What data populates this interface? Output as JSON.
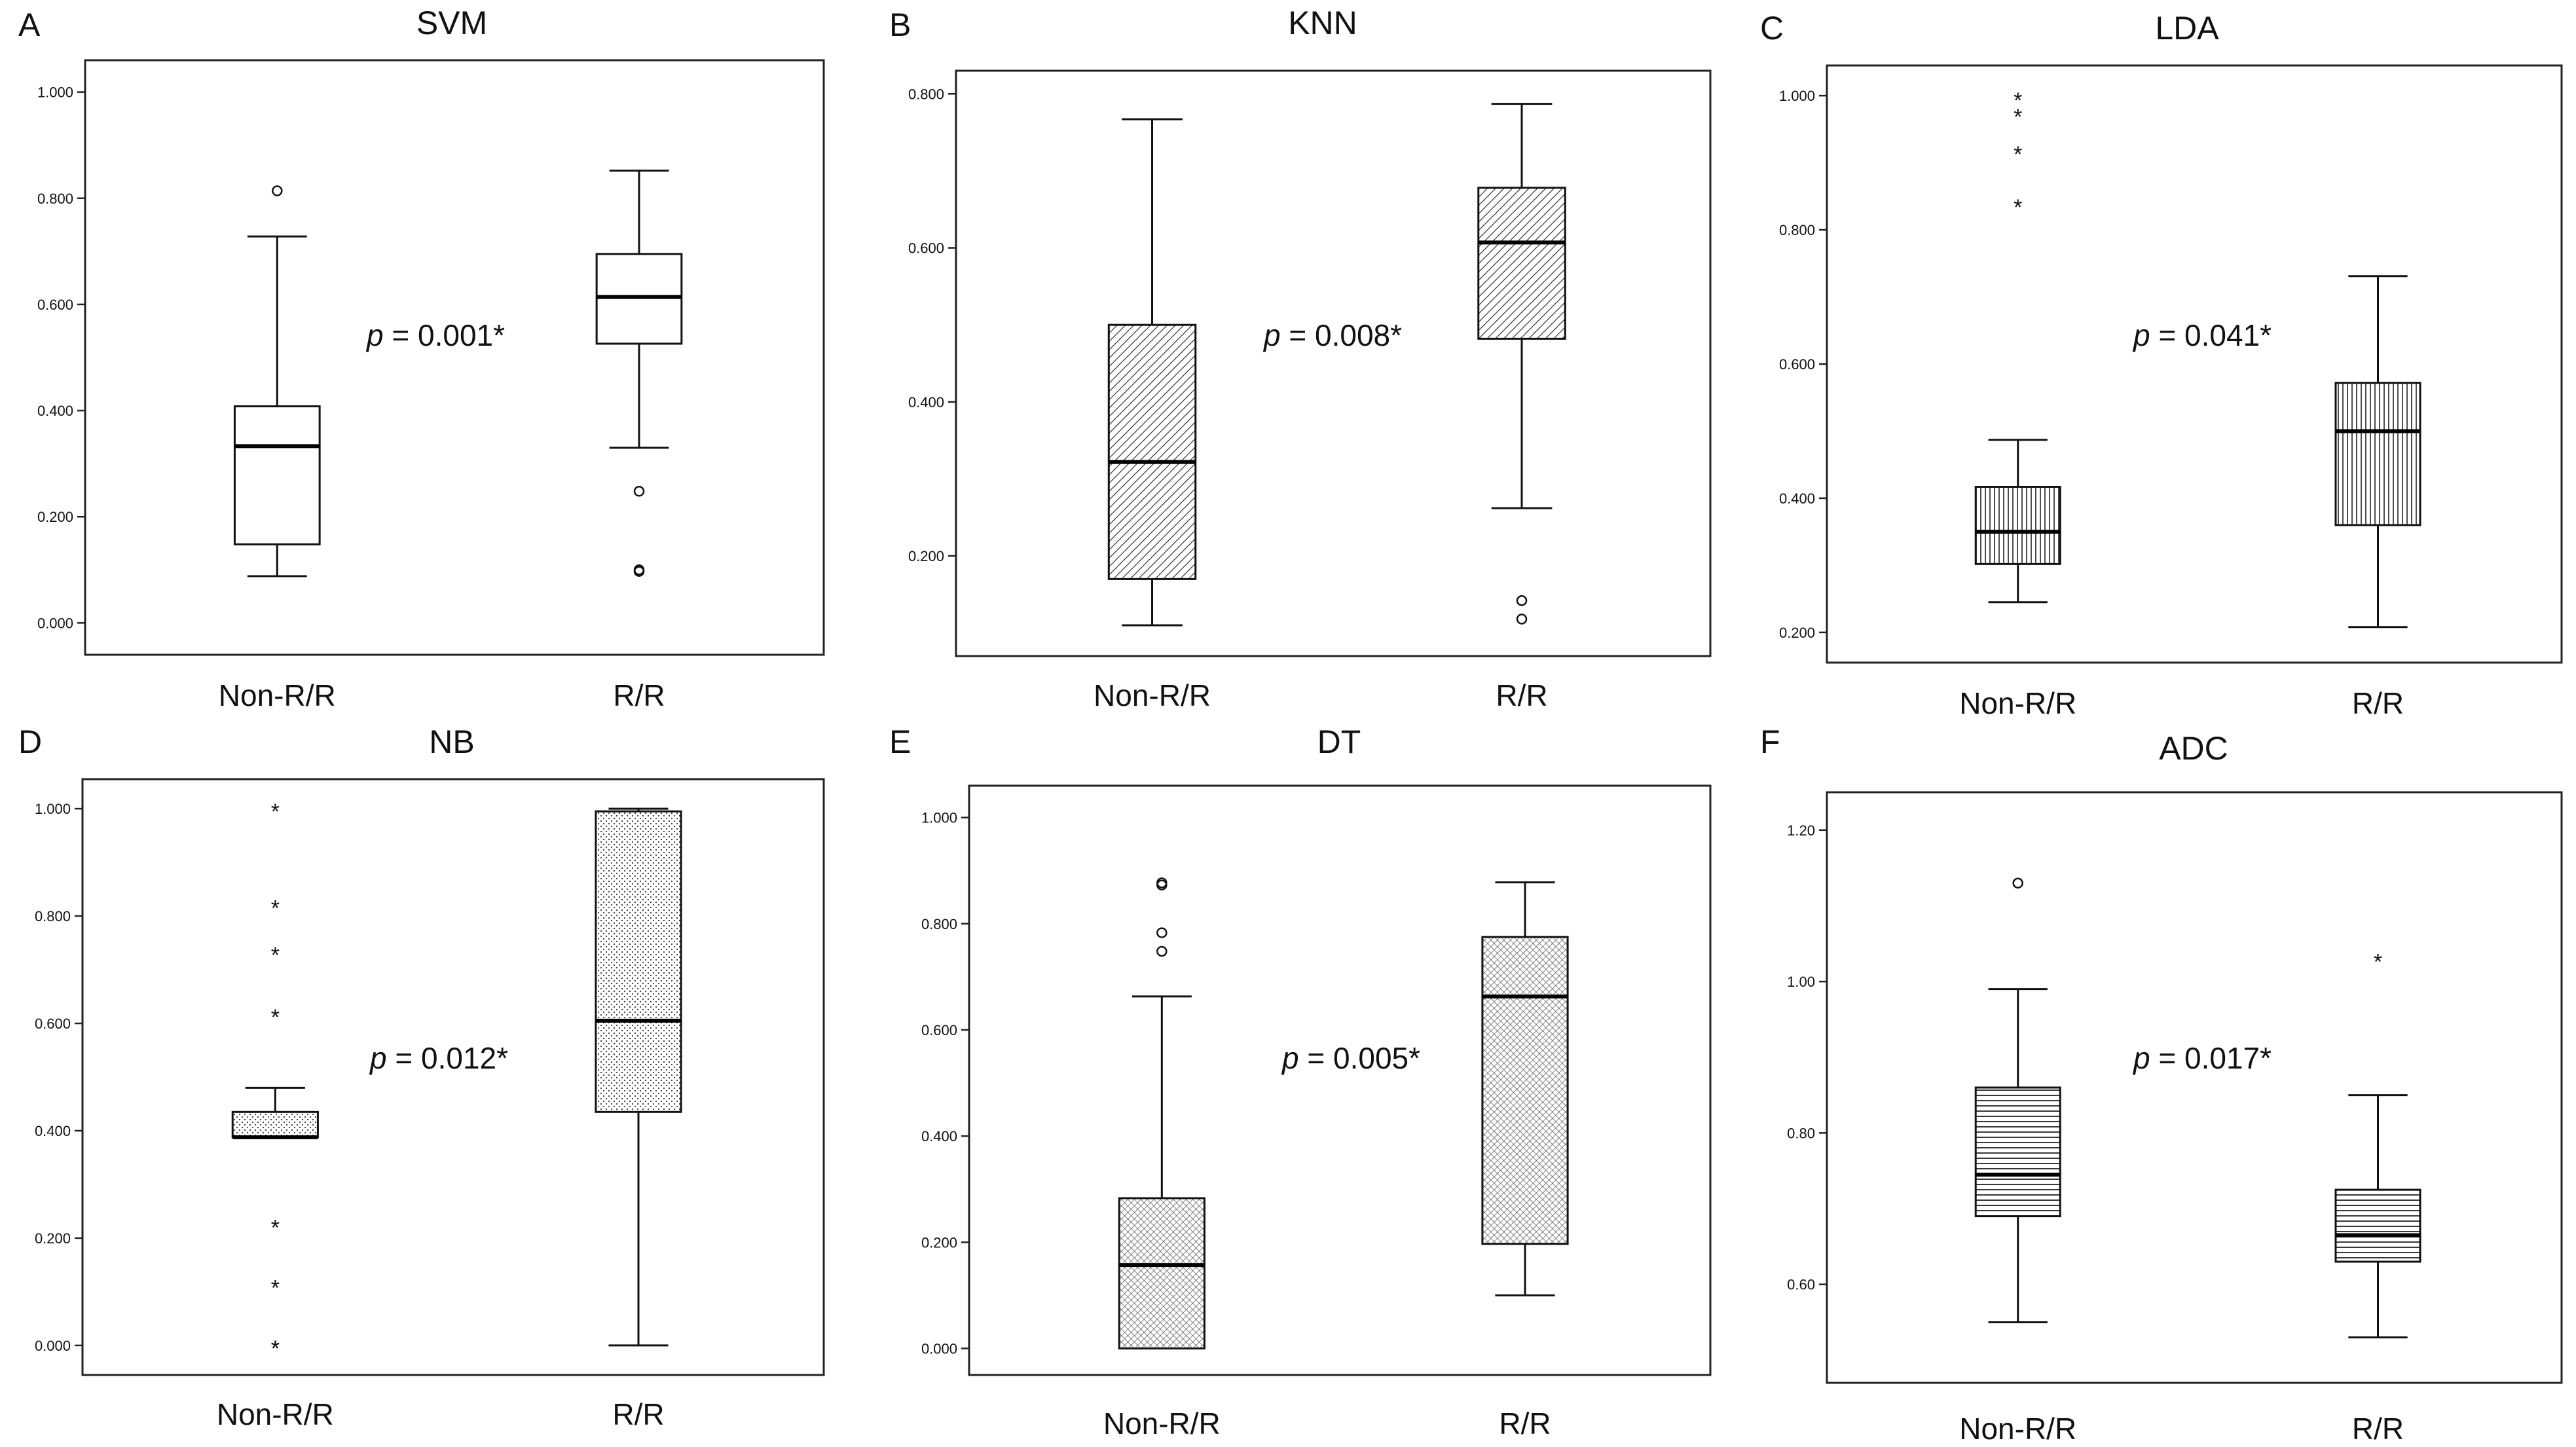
{
  "figure": {
    "panels": [
      "A",
      "B",
      "C",
      "D",
      "E",
      "F"
    ]
  },
  "chart_data": [
    {
      "letter": "A",
      "title": "SVM",
      "type": "box",
      "pattern": "none",
      "ylim": [
        -0.06,
        1.06
      ],
      "yticks": [
        0.0,
        0.2,
        0.4,
        0.6,
        0.8,
        1.0
      ],
      "ytick_labels": [
        "0.000",
        "0.200",
        "0.400",
        "0.600",
        "0.800",
        "1.000"
      ],
      "categories": [
        "Non-R/R",
        "R/R"
      ],
      "pvalue_prefix": "p",
      "pvalue_text": " = 0.001*",
      "boxes": [
        {
          "name": "Non-R/R",
          "whisker_low": 0.088,
          "q1": 0.148,
          "median": 0.333,
          "q3": 0.408,
          "whisker_high": 0.728,
          "outliers": [
            0.814
          ],
          "extremes": []
        },
        {
          "name": "R/R",
          "whisker_low": 0.33,
          "q1": 0.526,
          "median": 0.614,
          "q3": 0.695,
          "whisker_high": 0.852,
          "outliers": [
            0.248,
            0.1,
            0.097
          ],
          "extremes": []
        }
      ]
    },
    {
      "letter": "B",
      "title": "KNN",
      "type": "box",
      "pattern": "diag",
      "ylim": [
        0.07,
        0.83
      ],
      "yticks": [
        0.2,
        0.4,
        0.6,
        0.8
      ],
      "ytick_labels": [
        "0.200",
        "0.400",
        "0.600",
        "0.800"
      ],
      "categories": [
        "Non-R/R",
        "R/R"
      ],
      "pvalue_prefix": "p",
      "pvalue_text": " = 0.008*",
      "boxes": [
        {
          "name": "Non-R/R",
          "whisker_low": 0.11,
          "q1": 0.17,
          "median": 0.322,
          "q3": 0.5,
          "whisker_high": 0.767,
          "outliers": [],
          "extremes": []
        },
        {
          "name": "R/R",
          "whisker_low": 0.262,
          "q1": 0.482,
          "median": 0.607,
          "q3": 0.678,
          "whisker_high": 0.787,
          "outliers": [
            0.142,
            0.118
          ],
          "extremes": []
        }
      ]
    },
    {
      "letter": "C",
      "title": "LDA",
      "type": "box",
      "pattern": "vert",
      "ylim": [
        0.155,
        1.045
      ],
      "yticks": [
        0.2,
        0.4,
        0.6,
        0.8,
        1.0
      ],
      "ytick_labels": [
        "0.200",
        "0.400",
        "0.600",
        "0.800",
        "1.000"
      ],
      "categories": [
        "Non-R/R",
        "R/R"
      ],
      "pvalue_prefix": "p",
      "pvalue_text": " = 0.041*",
      "boxes": [
        {
          "name": "Non-R/R",
          "whisker_low": 0.245,
          "q1": 0.302,
          "median": 0.35,
          "q3": 0.417,
          "whisker_high": 0.487,
          "outliers": [],
          "extremes": [
            0.997,
            0.973,
            0.917,
            0.838
          ]
        },
        {
          "name": "R/R",
          "whisker_low": 0.208,
          "q1": 0.36,
          "median": 0.5,
          "q3": 0.572,
          "whisker_high": 0.731,
          "outliers": [],
          "extremes": []
        }
      ]
    },
    {
      "letter": "D",
      "title": "NB",
      "type": "box",
      "pattern": "dots",
      "ylim": [
        -0.055,
        1.055
      ],
      "yticks": [
        0.0,
        0.2,
        0.4,
        0.6,
        0.8,
        1.0
      ],
      "ytick_labels": [
        "0.000",
        "0.200",
        "0.400",
        "0.600",
        "0.800",
        "1.000"
      ],
      "categories": [
        "Non-R/R",
        "R/R"
      ],
      "pvalue_prefix": "p",
      "pvalue_text": " = 0.012*",
      "boxes": [
        {
          "name": "Non-R/R",
          "whisker_low": 0.388,
          "q1": 0.388,
          "median": 0.388,
          "q3": 0.435,
          "whisker_high": 0.48,
          "outliers": [],
          "extremes": [
            1.0,
            0.82,
            0.733,
            0.617,
            0.225,
            0.113,
            0.0,
            0.0
          ]
        },
        {
          "name": "R/R",
          "whisker_low": 0.0,
          "q1": 0.435,
          "median": 0.605,
          "q3": 0.995,
          "whisker_high": 1.0,
          "outliers": [],
          "extremes": []
        }
      ]
    },
    {
      "letter": "E",
      "title": "DT",
      "type": "box",
      "pattern": "cross",
      "ylim": [
        -0.05,
        1.06
      ],
      "yticks": [
        0.0,
        0.2,
        0.4,
        0.6,
        0.8,
        1.0
      ],
      "ytick_labels": [
        "0.000",
        "0.200",
        "0.400",
        "0.600",
        "0.800",
        "1.000"
      ],
      "categories": [
        "Non-R/R",
        "R/R"
      ],
      "pvalue_prefix": "p",
      "pvalue_text": " = 0.005*",
      "boxes": [
        {
          "name": "Non-R/R",
          "whisker_low": 0.0,
          "q1": 0.0,
          "median": 0.157,
          "q3": 0.283,
          "whisker_high": 0.663,
          "outliers": [
            0.877,
            0.873,
            0.783,
            0.748
          ],
          "extremes": []
        },
        {
          "name": "R/R",
          "whisker_low": 0.1,
          "q1": 0.197,
          "median": 0.663,
          "q3": 0.775,
          "whisker_high": 0.878,
          "outliers": [],
          "extremes": []
        }
      ]
    },
    {
      "letter": "F",
      "title": "ADC",
      "type": "box",
      "pattern": "horiz",
      "ylim": [
        0.47,
        1.25
      ],
      "yticks": [
        0.6,
        0.8,
        1.0,
        1.2
      ],
      "ytick_labels": [
        "0.60",
        "0.80",
        "1.00",
        "1.20"
      ],
      "categories": [
        "Non-R/R",
        "R/R"
      ],
      "pvalue_prefix": "p",
      "pvalue_text": " = 0.017*",
      "boxes": [
        {
          "name": "Non-R/R",
          "whisker_low": 0.55,
          "q1": 0.69,
          "median": 0.745,
          "q3": 0.86,
          "whisker_high": 0.99,
          "outliers": [
            1.13
          ],
          "extremes": []
        },
        {
          "name": "R/R",
          "whisker_low": 0.53,
          "q1": 0.63,
          "median": 0.665,
          "q3": 0.725,
          "whisker_high": 0.85,
          "outliers": [],
          "extremes": [
            1.03
          ]
        }
      ]
    }
  ]
}
